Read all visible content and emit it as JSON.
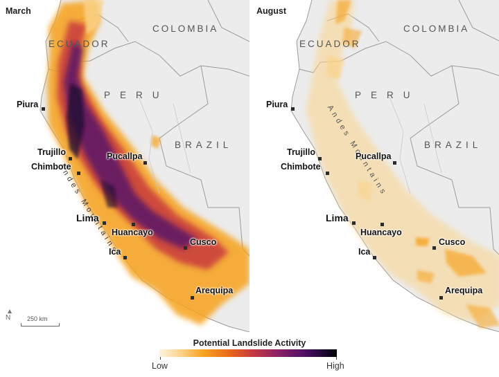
{
  "colors": {
    "background": "#ececec",
    "land_outline": "#9a9a9a",
    "low": "#fdf4df",
    "mid": "#f7a21e",
    "mid_high": "#8e2265",
    "high": "#000000"
  },
  "panels": [
    {
      "month": "March",
      "countries": [
        "COLOMBIA",
        "ECUADOR",
        "PERU",
        "BRAZIL"
      ],
      "mountain_label": "Andes Mountains",
      "cities": [
        "Piura",
        "Trujillo",
        "Chimbote",
        "Pucallpa",
        "Lima",
        "Huancayo",
        "Ica",
        "Cusco",
        "Arequipa"
      ]
    },
    {
      "month": "August",
      "countries": [
        "COLOMBIA",
        "ECUADOR",
        "PERU",
        "BRAZIL"
      ],
      "mountain_label": "Andes Mountains",
      "cities": [
        "Piura",
        "Trujillo",
        "Chimbote",
        "Pucallpa",
        "Lima",
        "Huancayo",
        "Ica",
        "Cusco",
        "Arequipa"
      ]
    }
  ],
  "scale_bar": {
    "label": "250 km",
    "north_symbol": "N"
  },
  "legend": {
    "title": "Potential Landslide Activity",
    "low_label": "Low",
    "high_label": "High"
  }
}
